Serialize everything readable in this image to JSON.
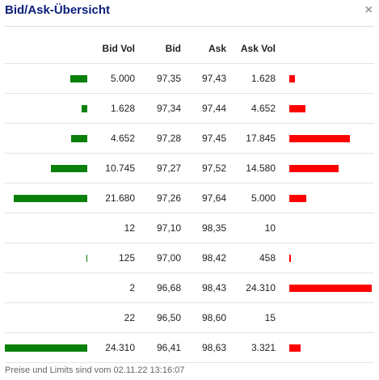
{
  "window": {
    "title": "Bid/Ask-Übersicht",
    "close_glyph": "×"
  },
  "columns": {
    "bid_vol": "Bid Vol",
    "bid": "Bid",
    "ask": "Ask",
    "ask_vol": "Ask Vol"
  },
  "colors": {
    "bid_bar": "#0a800a",
    "ask_bar": "#ff0000",
    "title": "#0a1e78"
  },
  "rows": [
    {
      "bid_vol": "5.000",
      "bid": "97,35",
      "ask": "97,43",
      "ask_vol": "1.628",
      "bid_vol_value": 5000,
      "ask_vol_value": 1628
    },
    {
      "bid_vol": "1.628",
      "bid": "97,34",
      "ask": "97,44",
      "ask_vol": "4.652",
      "bid_vol_value": 1628,
      "ask_vol_value": 4652
    },
    {
      "bid_vol": "4.652",
      "bid": "97,28",
      "ask": "97,45",
      "ask_vol": "17.845",
      "bid_vol_value": 4652,
      "ask_vol_value": 17845
    },
    {
      "bid_vol": "10.745",
      "bid": "97,27",
      "ask": "97,52",
      "ask_vol": "14.580",
      "bid_vol_value": 10745,
      "ask_vol_value": 14580
    },
    {
      "bid_vol": "21.680",
      "bid": "97,26",
      "ask": "97,64",
      "ask_vol": "5.000",
      "bid_vol_value": 21680,
      "ask_vol_value": 5000
    },
    {
      "bid_vol": "12",
      "bid": "97,10",
      "ask": "98,35",
      "ask_vol": "10",
      "bid_vol_value": 12,
      "ask_vol_value": 10
    },
    {
      "bid_vol": "125",
      "bid": "97,00",
      "ask": "98,42",
      "ask_vol": "458",
      "bid_vol_value": 125,
      "ask_vol_value": 458
    },
    {
      "bid_vol": "2",
      "bid": "96,68",
      "ask": "98,43",
      "ask_vol": "24.310",
      "bid_vol_value": 2,
      "ask_vol_value": 24310
    },
    {
      "bid_vol": "22",
      "bid": "96,50",
      "ask": "98,60",
      "ask_vol": "15",
      "bid_vol_value": 22,
      "ask_vol_value": 15
    },
    {
      "bid_vol": "24.310",
      "bid": "96,41",
      "ask": "98,63",
      "ask_vol": "3.321",
      "bid_vol_value": 24310,
      "ask_vol_value": 3321
    }
  ],
  "footer": {
    "text": "Preise und Limits sind vom 02.11.22 13:16:07"
  }
}
